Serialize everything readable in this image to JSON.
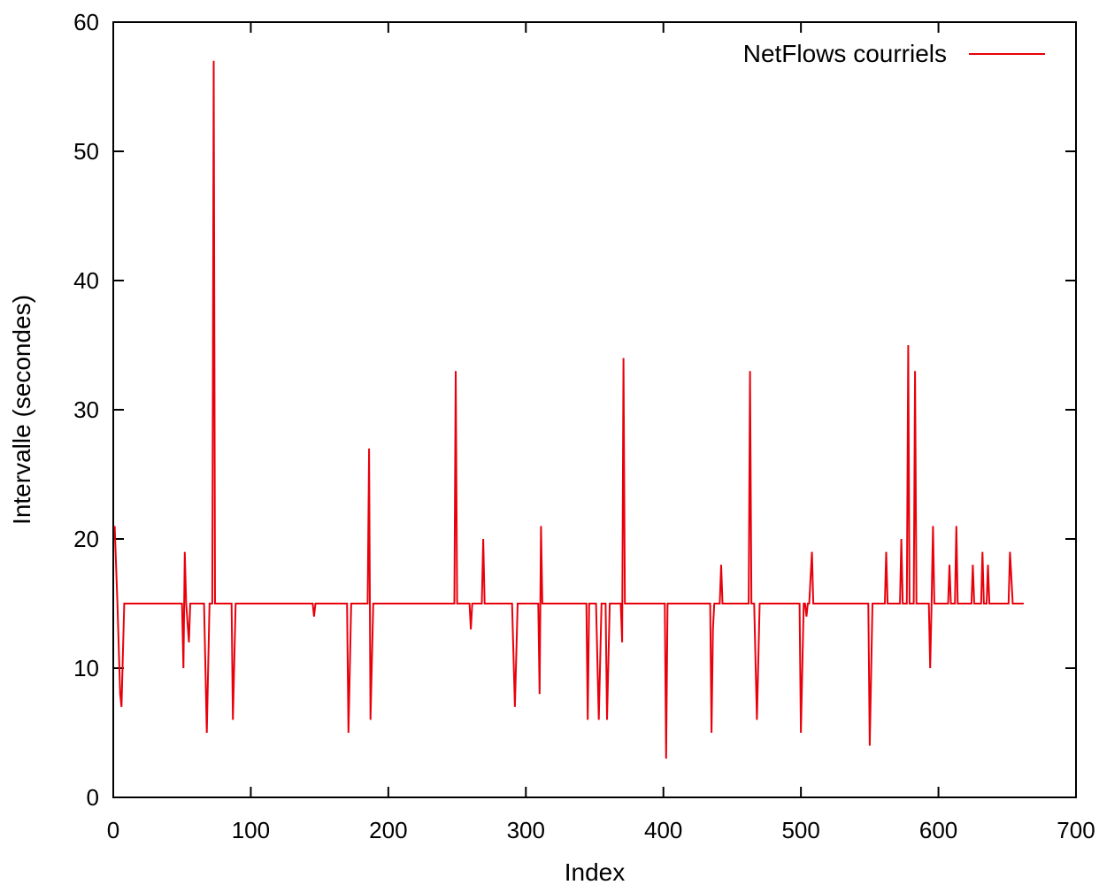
{
  "chart_data": {
    "type": "line",
    "title": "",
    "xlabel": "Index",
    "ylabel": "Intervalle (secondes)",
    "xlim": [
      0,
      700
    ],
    "ylim": [
      0,
      60
    ],
    "xticks": [
      0,
      100,
      200,
      300,
      400,
      500,
      600,
      700
    ],
    "yticks": [
      0,
      10,
      20,
      30,
      40,
      50,
      60
    ],
    "xtick_labels": [
      "0",
      "100",
      "200",
      "300",
      "400",
      "500",
      "600",
      "700"
    ],
    "ytick_labels": [
      "0",
      "10",
      "20",
      "30",
      "40",
      "50",
      "60"
    ],
    "grid": false,
    "legend_position": "top-right",
    "series": [
      {
        "name": "NetFlows courriels",
        "color": "#e8000b",
        "points": [
          [
            1,
            21
          ],
          [
            3,
            15
          ],
          [
            5,
            8
          ],
          [
            6,
            7
          ],
          [
            8,
            15
          ],
          [
            50,
            15
          ],
          [
            51,
            10
          ],
          [
            52,
            19
          ],
          [
            53,
            15
          ],
          [
            55,
            12
          ],
          [
            56,
            15
          ],
          [
            66,
            15
          ],
          [
            68,
            5
          ],
          [
            70,
            15
          ],
          [
            72,
            15
          ],
          [
            73,
            57
          ],
          [
            74,
            15
          ],
          [
            86,
            15
          ],
          [
            87,
            6
          ],
          [
            89,
            15
          ],
          [
            145,
            15
          ],
          [
            146,
            14
          ],
          [
            147,
            15
          ],
          [
            170,
            15
          ],
          [
            171,
            5
          ],
          [
            173,
            15
          ],
          [
            185,
            15
          ],
          [
            186,
            27
          ],
          [
            187,
            6
          ],
          [
            189,
            15
          ],
          [
            248,
            15
          ],
          [
            249,
            33
          ],
          [
            250,
            15
          ],
          [
            259,
            15
          ],
          [
            260,
            13
          ],
          [
            261,
            15
          ],
          [
            268,
            15
          ],
          [
            269,
            20
          ],
          [
            270,
            15
          ],
          [
            290,
            15
          ],
          [
            292,
            7
          ],
          [
            294,
            15
          ],
          [
            309,
            15
          ],
          [
            310,
            8
          ],
          [
            311,
            21
          ],
          [
            312,
            15
          ],
          [
            344,
            15
          ],
          [
            345,
            6
          ],
          [
            346,
            15
          ],
          [
            351,
            15
          ],
          [
            353,
            6
          ],
          [
            355,
            15
          ],
          [
            358,
            15
          ],
          [
            359,
            6
          ],
          [
            361,
            15
          ],
          [
            369,
            15
          ],
          [
            370,
            12
          ],
          [
            371,
            34
          ],
          [
            372,
            15
          ],
          [
            401,
            15
          ],
          [
            402,
            3
          ],
          [
            403,
            15
          ],
          [
            434,
            15
          ],
          [
            435,
            5
          ],
          [
            436,
            13
          ],
          [
            437,
            15
          ],
          [
            441,
            15
          ],
          [
            442,
            18
          ],
          [
            443,
            15
          ],
          [
            462,
            15
          ],
          [
            463,
            33
          ],
          [
            464,
            15
          ],
          [
            466,
            15
          ],
          [
            468,
            6
          ],
          [
            470,
            15
          ],
          [
            499,
            15
          ],
          [
            500,
            5
          ],
          [
            502,
            15
          ],
          [
            503,
            15
          ],
          [
            504,
            14
          ],
          [
            505,
            15
          ],
          [
            506,
            15
          ],
          [
            508,
            19
          ],
          [
            509,
            15
          ],
          [
            549,
            15
          ],
          [
            550,
            4
          ],
          [
            552,
            15
          ],
          [
            561,
            15
          ],
          [
            562,
            19
          ],
          [
            563,
            15
          ],
          [
            572,
            15
          ],
          [
            573,
            20
          ],
          [
            574,
            15
          ],
          [
            577,
            15
          ],
          [
            578,
            35
          ],
          [
            579,
            15
          ],
          [
            582,
            15
          ],
          [
            583,
            33
          ],
          [
            584,
            15
          ],
          [
            593,
            15
          ],
          [
            594,
            10
          ],
          [
            595,
            15
          ],
          [
            596,
            21
          ],
          [
            597,
            15
          ],
          [
            607,
            15
          ],
          [
            608,
            18
          ],
          [
            609,
            15
          ],
          [
            612,
            15
          ],
          [
            613,
            21
          ],
          [
            614,
            15
          ],
          [
            624,
            15
          ],
          [
            625,
            18
          ],
          [
            626,
            15
          ],
          [
            631,
            15
          ],
          [
            632,
            19
          ],
          [
            633,
            15
          ],
          [
            635,
            15
          ],
          [
            636,
            18
          ],
          [
            637,
            15
          ],
          [
            651,
            15
          ],
          [
            652,
            19
          ],
          [
            654,
            15
          ],
          [
            662,
            15
          ]
        ]
      }
    ]
  }
}
